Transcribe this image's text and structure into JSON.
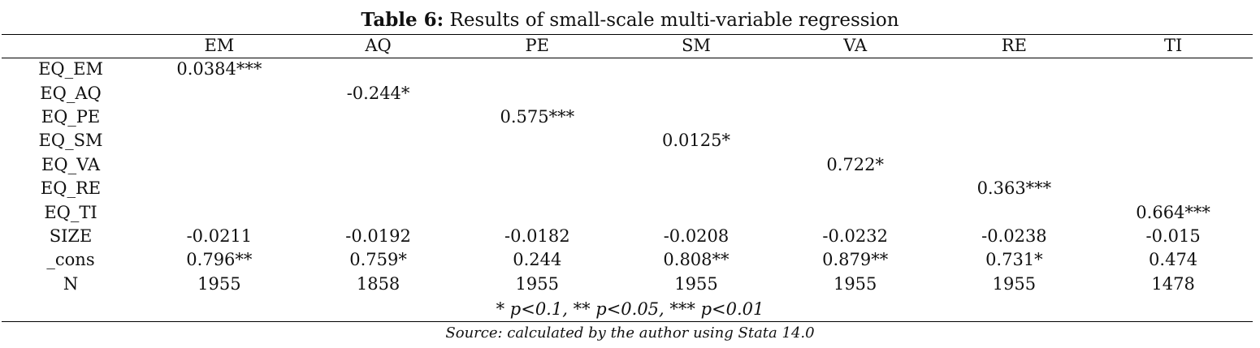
{
  "title": {
    "label": "Table 6:",
    "text": "Results of small-scale multi-variable regression"
  },
  "table": {
    "columns": [
      "EM",
      "AQ",
      "PE",
      "SM",
      "VA",
      "RE",
      "TI"
    ],
    "rows": [
      {
        "label": "EQ_EM",
        "cells": [
          "0.0384***",
          "",
          "",
          "",
          "",
          "",
          ""
        ]
      },
      {
        "label": "EQ_AQ",
        "cells": [
          "",
          "-0.244*",
          "",
          "",
          "",
          "",
          ""
        ]
      },
      {
        "label": "EQ_PE",
        "cells": [
          "",
          "",
          "0.575***",
          "",
          "",
          "",
          ""
        ]
      },
      {
        "label": "EQ_SM",
        "cells": [
          "",
          "",
          "",
          "0.0125*",
          "",
          "",
          ""
        ]
      },
      {
        "label": "EQ_VA",
        "cells": [
          "",
          "",
          "",
          "",
          "0.722*",
          "",
          ""
        ]
      },
      {
        "label": "EQ_RE",
        "cells": [
          "",
          "",
          "",
          "",
          "",
          "0.363***",
          ""
        ]
      },
      {
        "label": "EQ_TI",
        "cells": [
          "",
          "",
          "",
          "",
          "",
          "",
          "0.664***"
        ]
      },
      {
        "label": "SIZE",
        "cells": [
          "-0.0211",
          "-0.0192",
          "-0.0182",
          "-0.0208",
          "-0.0232",
          "-0.0238",
          "-0.015"
        ]
      },
      {
        "label": "_cons",
        "cells": [
          "0.796**",
          "0.759*",
          "0.244",
          "0.808**",
          "0.879**",
          "0.731*",
          "0.474"
        ]
      },
      {
        "label": "N",
        "cells": [
          "1955",
          "1858",
          "1955",
          "1955",
          "1955",
          "1955",
          "1478"
        ]
      }
    ]
  },
  "note": "* p<0.1, ** p<0.05, *** p<0.01",
  "source": "Source: calculated by the author using Stata 14.0"
}
